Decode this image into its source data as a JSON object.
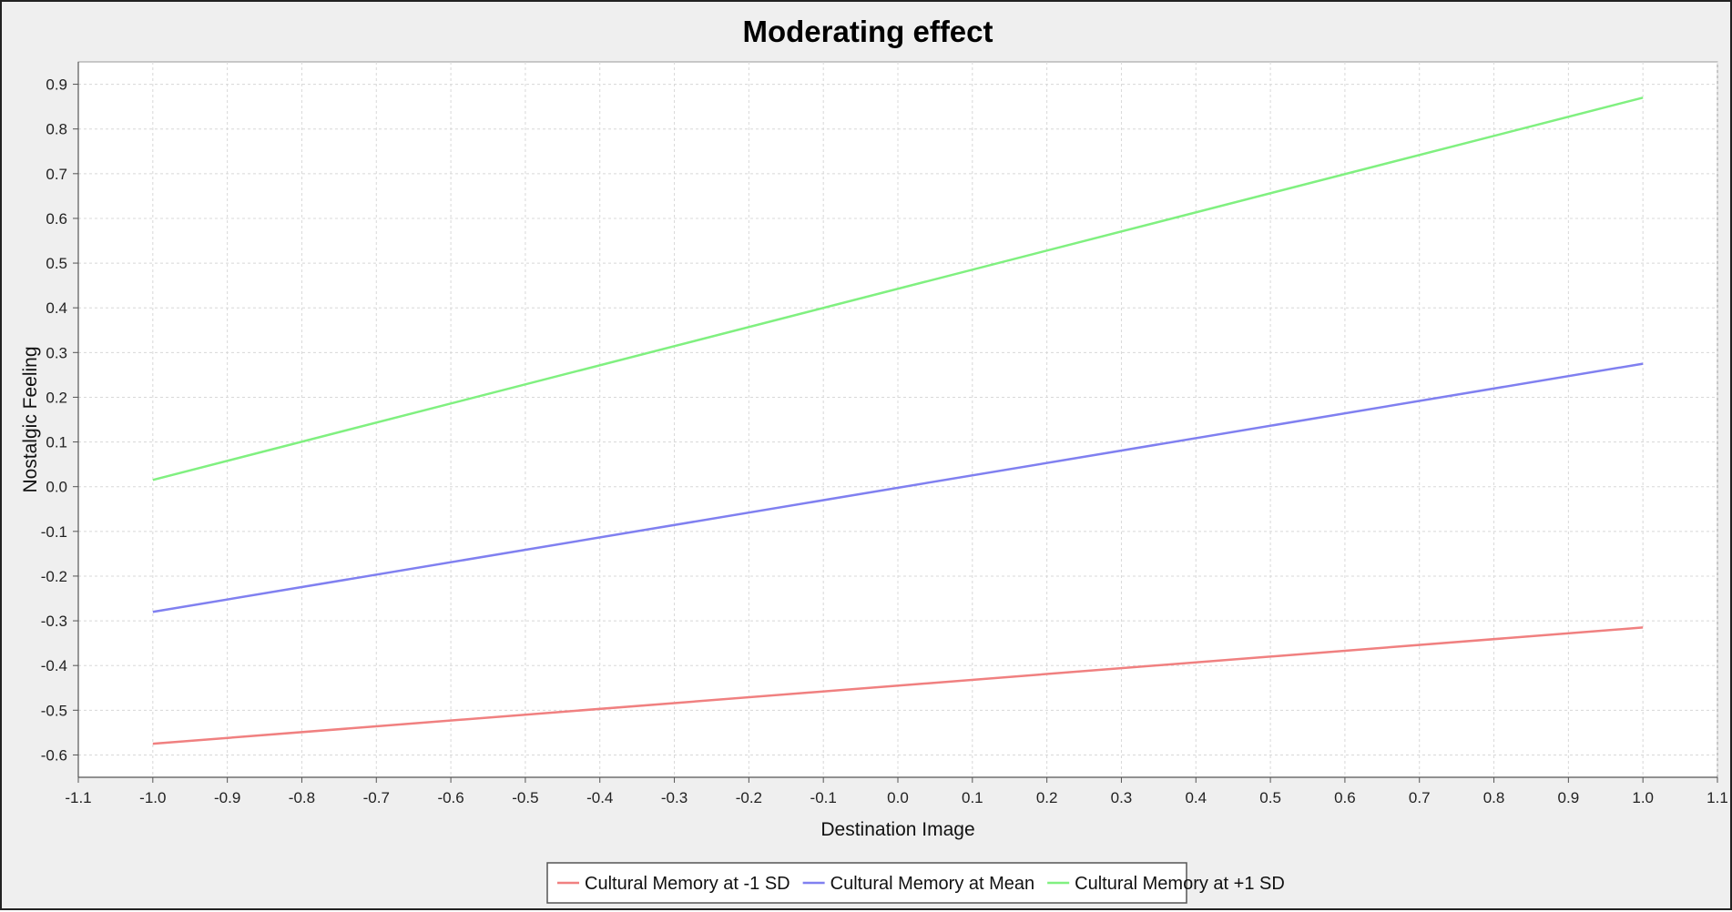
{
  "chart_data": {
    "type": "line",
    "title": "Moderating effect",
    "xlabel": "Destination Image",
    "ylabel": "Nostalgic Feeling",
    "xlim": [
      -1.1,
      1.1
    ],
    "ylim": [
      -0.65,
      0.95
    ],
    "xticks": [
      "-1.1",
      "-1.0",
      "-0.9",
      "-0.8",
      "-0.7",
      "-0.6",
      "-0.5",
      "-0.4",
      "-0.3",
      "-0.2",
      "-0.1",
      "0.0",
      "0.1",
      "0.2",
      "0.3",
      "0.4",
      "0.5",
      "0.6",
      "0.7",
      "0.8",
      "0.9",
      "1.0",
      "1.1"
    ],
    "yticks": [
      "0.9",
      "0.8",
      "0.7",
      "0.6",
      "0.5",
      "0.4",
      "0.3",
      "0.2",
      "0.1",
      "0.0",
      "-0.1",
      "-0.2",
      "-0.3",
      "-0.4",
      "-0.5",
      "-0.6"
    ],
    "grid": true,
    "legend_position": "bottom",
    "series": [
      {
        "name": "Cultural Memory at -1 SD",
        "color": "#f08080",
        "x": [
          -1.0,
          1.0
        ],
        "y": [
          -0.575,
          -0.315
        ]
      },
      {
        "name": "Cultural Memory at Mean",
        "color": "#8080f0",
        "x": [
          -1.0,
          1.0
        ],
        "y": [
          -0.28,
          0.275
        ]
      },
      {
        "name": "Cultural Memory at +1 SD",
        "color": "#80f080",
        "x": [
          -1.0,
          1.0
        ],
        "y": [
          0.015,
          0.87
        ]
      }
    ]
  }
}
